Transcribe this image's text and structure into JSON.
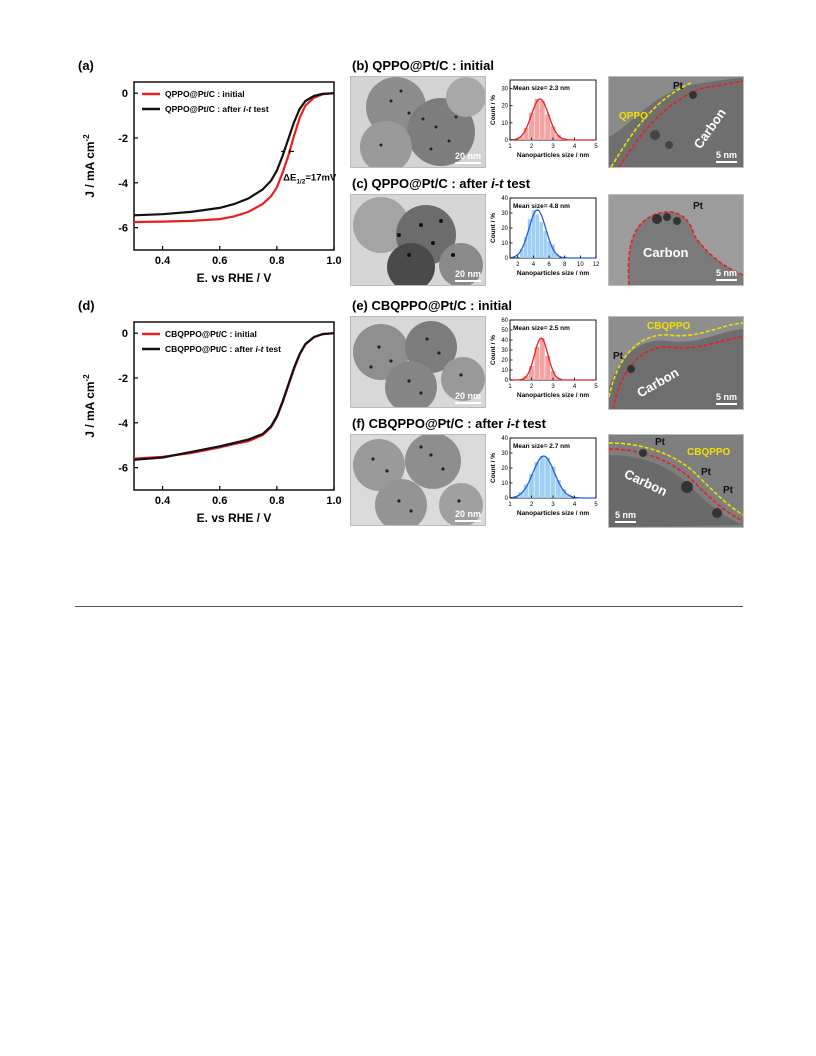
{
  "figure": {
    "panel_a": {
      "label": "(a)",
      "xlabel": "E. vs RHE / V",
      "ylabel": "J / mA cm",
      "ylabel_sup": "-2",
      "xticks": [
        "0.4",
        "0.6",
        "0.8",
        "1.0"
      ],
      "yticks": [
        "0",
        "-2",
        "-4",
        "-6"
      ],
      "legend": [
        {
          "text": "QPPO@Pt/C : initial",
          "color": "#e8201f"
        },
        {
          "text": "QPPO@Pt/C : after ",
          "italic": "i-t",
          "suffix": " test",
          "color": "#111111"
        }
      ],
      "annotation": "ΔE",
      "annotation_sub": "1/2",
      "annotation_suffix": "=17mV"
    },
    "panel_d": {
      "label": "(d)",
      "xlabel": "E. vs RHE / V",
      "ylabel": "J / mA cm",
      "ylabel_sup": "-2",
      "xticks": [
        "0.4",
        "0.6",
        "0.8",
        "1.0"
      ],
      "yticks": [
        "0",
        "-2",
        "-4",
        "-6"
      ],
      "legend": [
        {
          "text": "CBQPPO@Pt/C : initial",
          "color": "#e8201f"
        },
        {
          "text": "CBQPPO@Pt/C : after ",
          "italic": "i-t",
          "suffix": " test",
          "color": "#111111"
        }
      ]
    },
    "panel_b": {
      "label": "(b) QPPO@Pt/C : initial",
      "tem_scale": "20 nm",
      "hist_mean": "Mean size= 2.3 nm",
      "hist_xlabel": "Nanoparticles size / nm",
      "hist_ylabel": "Count / %",
      "hist_xticks": [
        "1",
        "2",
        "3",
        "4",
        "5"
      ],
      "hist_yticks": [
        "0",
        "10",
        "20",
        "30"
      ],
      "hr_labels": {
        "pt": "Pt",
        "shell": "QPPO",
        "carbon": "Carbon"
      },
      "hr_scale": "5 nm"
    },
    "panel_c": {
      "label_prefix": "(c) QPPO@Pt/C : after ",
      "label_italic": "i-t",
      "label_suffix": " test",
      "tem_scale": "20 nm",
      "hist_mean": "Mean size= 4.8 nm",
      "hist_xlabel": "Nanoparticles size / nm",
      "hist_ylabel": "Count / %",
      "hist_xticks": [
        "2",
        "4",
        "6",
        "8",
        "10",
        "12"
      ],
      "hist_yticks": [
        "0",
        "10",
        "20",
        "30",
        "40"
      ],
      "hr_labels": {
        "pt": "Pt",
        "carbon": "Carbon"
      },
      "hr_scale": "5 nm"
    },
    "panel_e": {
      "label": "(e) CBQPPO@Pt/C : initial",
      "tem_scale": "20 nm",
      "hist_mean": "Mean size= 2.5 nm",
      "hist_xlabel": "Nanoparticles size / nm",
      "hist_ylabel": "Count / %",
      "hist_xticks": [
        "1",
        "2",
        "3",
        "4",
        "5"
      ],
      "hist_yticks": [
        "0",
        "10",
        "20",
        "30",
        "40",
        "50",
        "60"
      ],
      "hr_labels": {
        "pt": "Pt",
        "shell": "CBQPPO",
        "carbon": "Carbon"
      },
      "hr_scale": "5 nm"
    },
    "panel_f": {
      "label_prefix": "(f) CBQPPO@Pt/C : after ",
      "label_italic": "i-t",
      "label_suffix": " test",
      "tem_scale": "20 nm",
      "hist_mean": "Mean size= 2.7 nm",
      "hist_xlabel": "Nanoparticles size / nm",
      "hist_ylabel": "Count / %",
      "hist_xticks": [
        "1",
        "2",
        "3",
        "4",
        "5"
      ],
      "hist_yticks": [
        "0",
        "10",
        "20",
        "30",
        "40"
      ],
      "hr_labels": {
        "pt1": "Pt",
        "pt2": "Pt",
        "pt3": "Pt",
        "shell": "CBQPPO",
        "carbon": "Carbon"
      },
      "hr_scale": "5 nm"
    }
  },
  "chart_data": [
    {
      "type": "line",
      "panel": "a",
      "xlabel": "E. vs RHE / V",
      "ylabel": "J / mA cm-2",
      "xlim": [
        0.3,
        1.0
      ],
      "ylim": [
        -7,
        0.5
      ],
      "series": [
        {
          "name": "QPPO@Pt/C : initial",
          "color": "#e8201f",
          "x": [
            0.3,
            0.4,
            0.5,
            0.6,
            0.65,
            0.7,
            0.75,
            0.78,
            0.8,
            0.82,
            0.84,
            0.86,
            0.88,
            0.9,
            0.93,
            0.96,
            1.0
          ],
          "y": [
            -5.75,
            -5.73,
            -5.7,
            -5.62,
            -5.5,
            -5.3,
            -4.95,
            -4.6,
            -4.2,
            -3.55,
            -2.8,
            -1.9,
            -1.1,
            -0.55,
            -0.2,
            -0.05,
            0.0
          ]
        },
        {
          "name": "QPPO@Pt/C : after i-t test",
          "color": "#111111",
          "x": [
            0.3,
            0.4,
            0.5,
            0.6,
            0.65,
            0.7,
            0.75,
            0.78,
            0.8,
            0.82,
            0.84,
            0.86,
            0.88,
            0.9,
            0.93,
            0.96,
            1.0
          ],
          "y": [
            -5.45,
            -5.4,
            -5.3,
            -5.12,
            -4.95,
            -4.7,
            -4.3,
            -3.9,
            -3.45,
            -2.8,
            -2.05,
            -1.3,
            -0.7,
            -0.35,
            -0.12,
            -0.03,
            0.0
          ]
        }
      ]
    },
    {
      "type": "line",
      "panel": "d",
      "xlabel": "E. vs RHE / V",
      "ylabel": "J / mA cm-2",
      "xlim": [
        0.3,
        1.0
      ],
      "ylim": [
        -7,
        0.5
      ],
      "series": [
        {
          "name": "CBQPPO@Pt/C : initial",
          "color": "#e8201f",
          "x": [
            0.3,
            0.4,
            0.5,
            0.6,
            0.65,
            0.7,
            0.75,
            0.78,
            0.8,
            0.82,
            0.84,
            0.86,
            0.88,
            0.9,
            0.93,
            0.96,
            1.0
          ],
          "y": [
            -5.6,
            -5.52,
            -5.35,
            -5.1,
            -4.95,
            -4.82,
            -4.55,
            -4.2,
            -3.75,
            -3.1,
            -2.35,
            -1.6,
            -0.95,
            -0.5,
            -0.18,
            -0.04,
            0.0
          ]
        },
        {
          "name": "CBQPPO@Pt/C : after i-t test",
          "color": "#111111",
          "x": [
            0.3,
            0.4,
            0.5,
            0.6,
            0.65,
            0.7,
            0.75,
            0.78,
            0.8,
            0.82,
            0.84,
            0.86,
            0.88,
            0.9,
            0.93,
            0.96,
            1.0
          ],
          "y": [
            -5.65,
            -5.55,
            -5.3,
            -5.05,
            -4.9,
            -4.75,
            -4.5,
            -4.15,
            -3.7,
            -3.05,
            -2.3,
            -1.55,
            -0.92,
            -0.48,
            -0.17,
            -0.04,
            0.0
          ]
        }
      ]
    },
    {
      "type": "bar",
      "panel": "b",
      "categories": [
        1.5,
        1.75,
        2.0,
        2.25,
        2.5,
        2.75,
        3.0,
        3.25,
        3.5
      ],
      "values": [
        2,
        7,
        16,
        24,
        23,
        15,
        8,
        3,
        1
      ],
      "color": "#f4a3a3",
      "fit_color": "#e8201f",
      "xlim": [
        1,
        5
      ],
      "ylim": [
        0,
        35
      ]
    },
    {
      "type": "bar",
      "panel": "c",
      "categories": [
        2.5,
        3.0,
        3.5,
        4.0,
        4.5,
        5.0,
        5.5,
        6.0,
        6.5,
        7.0,
        8.0
      ],
      "values": [
        6,
        14,
        26,
        32,
        29,
        24,
        18,
        11,
        9,
        3,
        1
      ],
      "color": "#9ed0f3",
      "fit_color": "#2a5cd6",
      "xlim": [
        1,
        12
      ],
      "ylim": [
        0,
        40
      ]
    },
    {
      "type": "bar",
      "panel": "e",
      "categories": [
        1.75,
        2.0,
        2.25,
        2.5,
        2.75,
        3.0,
        3.25
      ],
      "values": [
        4,
        14,
        33,
        42,
        24,
        9,
        2
      ],
      "color": "#f4a3a3",
      "fit_color": "#e8201f",
      "xlim": [
        1,
        5
      ],
      "ylim": [
        0,
        60
      ]
    },
    {
      "type": "bar",
      "panel": "f",
      "categories": [
        1.5,
        1.75,
        2.0,
        2.25,
        2.5,
        2.75,
        3.0,
        3.25,
        3.5,
        3.75
      ],
      "values": [
        4,
        9,
        16,
        24,
        28,
        27,
        21,
        12,
        6,
        2
      ],
      "color": "#9ed0f3",
      "fit_color": "#2a5cd6",
      "xlim": [
        1,
        5
      ],
      "ylim": [
        0,
        40
      ]
    }
  ]
}
